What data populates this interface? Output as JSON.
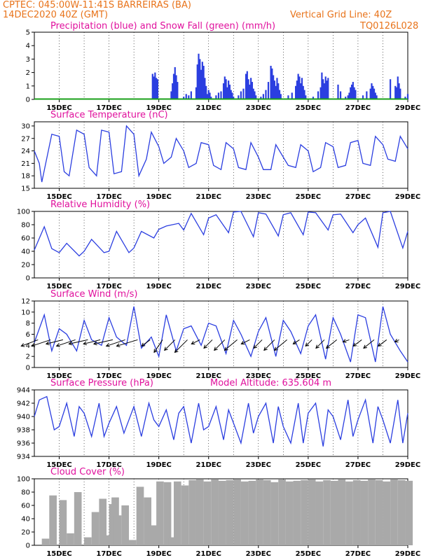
{
  "header": {
    "station": "CPTEC:  045:00W-11:41S  BARREIRAS (BA)",
    "run": "14DEC2020 40Z (GMT)",
    "grid_note": "Vertical Grid Line: 40Z",
    "code": "TQ0126L028"
  },
  "colors": {
    "header": "#e8731a",
    "title": "#e0119d",
    "line": "#2b3ee0",
    "snow": "#19a019",
    "cloud": "#a9a9a9"
  },
  "chart_data": [
    {
      "type": "bar",
      "title": "Precipitation (blue) and Snow Fall (green) (mm/h)",
      "ylim": [
        0,
        5
      ],
      "yticks": [
        0,
        1,
        2,
        3,
        4,
        5
      ],
      "x_range_days": [
        14,
        29
      ],
      "xticks": [
        "15DEC",
        "17DEC",
        "19DEC",
        "21DEC",
        "23DEC",
        "25DEC",
        "27DEC",
        "29DEC"
      ],
      "series": [
        {
          "name": "blue",
          "x": [
            18.75,
            18.8,
            18.85,
            18.9,
            18.95,
            19.5,
            19.55,
            19.6,
            19.65,
            19.7,
            19.75,
            20.0,
            20.1,
            20.2,
            20.3,
            20.5,
            20.55,
            20.6,
            20.65,
            20.7,
            20.75,
            20.8,
            20.85,
            20.9,
            20.95,
            21.0,
            21.05,
            21.1,
            21.3,
            21.4,
            21.5,
            21.6,
            21.65,
            21.7,
            21.75,
            21.8,
            21.85,
            21.9,
            21.95,
            22.0,
            22.2,
            22.3,
            22.4,
            22.5,
            22.55,
            22.6,
            22.65,
            22.7,
            22.75,
            22.8,
            22.85,
            22.9,
            23.1,
            23.2,
            23.3,
            23.4,
            23.5,
            23.55,
            23.6,
            23.65,
            23.7,
            23.75,
            23.8,
            23.85,
            23.9,
            24.2,
            24.35,
            24.5,
            24.55,
            24.6,
            24.65,
            24.7,
            24.75,
            24.8,
            24.85,
            24.9,
            25.2,
            25.4,
            25.5,
            25.55,
            25.6,
            25.65,
            25.7,
            25.75,
            25.8,
            26.2,
            26.3,
            26.5,
            26.6,
            26.65,
            26.7,
            26.75,
            26.8,
            26.85,
            26.9,
            27.2,
            27.35,
            27.5,
            27.55,
            27.6,
            27.65,
            27.7,
            27.75,
            28.3,
            28.5,
            28.55,
            28.6,
            28.65,
            28.7,
            28.9,
            29.0
          ],
          "values": [
            1.9,
            1.7,
            2.0,
            1.6,
            1.5,
            0.6,
            1.2,
            1.9,
            2.4,
            1.8,
            1.3,
            0.2,
            0.4,
            0.3,
            0.6,
            0.9,
            2.6,
            3.4,
            3.0,
            2.2,
            2.8,
            2.5,
            1.6,
            1.0,
            0.4,
            0.7,
            0.5,
            0.2,
            0.3,
            0.5,
            0.6,
            1.2,
            1.7,
            1.5,
            0.9,
            1.4,
            1.1,
            0.7,
            0.5,
            0.2,
            0.3,
            0.6,
            0.8,
            1.9,
            2.1,
            1.5,
            1.1,
            1.6,
            1.3,
            0.8,
            0.6,
            0.3,
            0.2,
            0.4,
            0.7,
            1.3,
            2.5,
            2.3,
            1.8,
            1.4,
            1.0,
            1.6,
            1.2,
            0.7,
            0.4,
            0.3,
            0.5,
            1.0,
            1.4,
            1.9,
            1.7,
            1.2,
            1.6,
            1.0,
            0.7,
            0.3,
            0.2,
            0.6,
            0.9,
            2.0,
            1.5,
            1.2,
            1.7,
            1.4,
            1.6,
            1.1,
            0.6,
            0.2,
            0.3,
            0.5,
            0.9,
            1.1,
            1.3,
            0.9,
            0.7,
            0.3,
            0.6,
            0.8,
            1.2,
            1.0,
            0.8,
            0.5,
            0.3,
            1.5,
            1.0,
            0.9,
            1.7,
            1.2,
            0.8,
            0.2,
            0.4
          ]
        },
        {
          "name": "green",
          "x": [
            14,
            29
          ],
          "values": [
            0,
            0
          ]
        }
      ]
    },
    {
      "type": "line",
      "title": "Surface Temperature (nC)",
      "ylim": [
        15,
        31
      ],
      "yticks": [
        15,
        18,
        21,
        24,
        27,
        30
      ],
      "xticks": [
        "15DEC",
        "17DEC",
        "19DEC",
        "21DEC",
        "23DEC",
        "25DEC",
        "27DEC",
        "29DEC"
      ],
      "series": [
        {
          "x": [
            14,
            14.2,
            14.3,
            14.7,
            15.0,
            15.2,
            15.4,
            15.7,
            16.0,
            16.2,
            16.5,
            16.7,
            17.0,
            17.2,
            17.5,
            17.7,
            18.0,
            18.2,
            18.5,
            18.7,
            19.0,
            19.2,
            19.5,
            19.7,
            20.0,
            20.2,
            20.5,
            20.7,
            21.0,
            21.2,
            21.5,
            21.7,
            22.0,
            22.2,
            22.5,
            22.7,
            23.0,
            23.2,
            23.5,
            23.7,
            24.0,
            24.2,
            24.5,
            24.7,
            25.0,
            25.2,
            25.5,
            25.7,
            26.0,
            26.2,
            26.5,
            26.7,
            27.0,
            27.2,
            27.5,
            27.7,
            28.0,
            28.2,
            28.5,
            28.7,
            29.0
          ],
          "values": [
            24,
            21,
            16.5,
            28,
            27.5,
            19,
            18,
            29,
            28,
            20,
            18,
            29,
            28.5,
            18.5,
            19,
            30,
            28,
            18,
            22,
            28.5,
            25,
            21,
            22.5,
            27,
            24,
            20,
            21,
            26,
            25.5,
            20.5,
            19.5,
            26,
            24.5,
            20,
            19.5,
            26,
            22.5,
            19.5,
            19.5,
            25.5,
            22.5,
            20.5,
            20,
            25.5,
            24,
            19,
            20,
            26,
            25,
            20,
            20.5,
            26,
            26.5,
            21,
            20.5,
            27.5,
            25.5,
            22,
            21.5,
            27.5,
            24.5
          ]
        }
      ]
    },
    {
      "type": "line",
      "title": "Relative Humidity (%)",
      "ylim": [
        0,
        100
      ],
      "yticks": [
        0,
        20,
        40,
        60,
        80,
        100
      ],
      "xticks": [
        "15DEC",
        "17DEC",
        "19DEC",
        "21DEC",
        "23DEC",
        "25DEC",
        "27DEC",
        "29DEC"
      ],
      "series": [
        {
          "x": [
            14,
            14.4,
            14.7,
            15.0,
            15.3,
            15.8,
            16.0,
            16.3,
            16.8,
            17.0,
            17.3,
            17.8,
            18.0,
            18.3,
            18.8,
            19.0,
            19.3,
            19.8,
            20.0,
            20.3,
            20.8,
            21.0,
            21.3,
            21.8,
            22.0,
            22.3,
            22.8,
            23.0,
            23.3,
            23.8,
            24.0,
            24.3,
            24.8,
            25.0,
            25.3,
            25.8,
            26.0,
            26.3,
            26.8,
            27.0,
            27.3,
            27.8,
            28.0,
            28.3,
            28.8,
            29.0
          ],
          "values": [
            42,
            77,
            44,
            38,
            52,
            33,
            40,
            58,
            38,
            40,
            70,
            38,
            45,
            70,
            60,
            73,
            78,
            82,
            72,
            97,
            65,
            90,
            95,
            68,
            99,
            100,
            62,
            98,
            96,
            63,
            95,
            98,
            65,
            99,
            98,
            72,
            95,
            96,
            68,
            80,
            90,
            46,
            98,
            100,
            45,
            70
          ]
        }
      ]
    },
    {
      "type": "line",
      "title": "Surface Wind (m/s)",
      "ylim": [
        0,
        12
      ],
      "yticks": [
        0,
        2,
        4,
        6,
        8,
        10,
        12
      ],
      "xticks": [
        "15DEC",
        "17DEC",
        "19DEC",
        "21DEC",
        "23DEC",
        "25DEC",
        "27DEC",
        "29DEC"
      ],
      "series": [
        {
          "x": [
            14,
            14.4,
            14.7,
            15.0,
            15.3,
            15.7,
            16.0,
            16.3,
            16.7,
            17.0,
            17.3,
            17.7,
            18.0,
            18.3,
            18.7,
            19.0,
            19.3,
            19.7,
            20.0,
            20.3,
            20.7,
            21.0,
            21.3,
            21.7,
            22.0,
            22.3,
            22.7,
            23.0,
            23.3,
            23.7,
            24.0,
            24.3,
            24.7,
            25.0,
            25.3,
            25.7,
            26.0,
            26.3,
            26.7,
            27.0,
            27.3,
            27.7,
            28.0,
            28.3,
            28.7,
            29.0
          ],
          "values": [
            4.5,
            9.5,
            3.0,
            7.0,
            6.0,
            3.0,
            8.5,
            5.0,
            4.0,
            9.0,
            5.5,
            4.0,
            11.0,
            3.5,
            5.5,
            2.0,
            9.5,
            3.0,
            7.0,
            7.5,
            4.0,
            8.0,
            7.5,
            2.5,
            8.5,
            6.0,
            2.0,
            6.5,
            9.0,
            2.0,
            8.5,
            6.5,
            2.5,
            7.5,
            9.5,
            1.5,
            9.0,
            6.0,
            1.0,
            9.5,
            9.0,
            1.0,
            11.0,
            6.0,
            3.0,
            1.0
          ]
        }
      ]
    },
    {
      "type": "line",
      "title": "Surface Pressure (hPa)",
      "subtitle": "Model Altitude: 635.604 m",
      "ylim": [
        934,
        944
      ],
      "yticks": [
        934,
        936,
        938,
        940,
        942,
        944
      ],
      "xticks": [
        "15DEC",
        "17DEC",
        "19DEC",
        "21DEC",
        "23DEC",
        "25DEC",
        "27DEC",
        "29DEC"
      ],
      "series": [
        {
          "x": [
            14,
            14.2,
            14.5,
            14.8,
            15.0,
            15.3,
            15.6,
            15.8,
            16.0,
            16.3,
            16.6,
            16.8,
            17.0,
            17.3,
            17.6,
            17.8,
            18.0,
            18.3,
            18.6,
            18.8,
            19.0,
            19.3,
            19.6,
            19.8,
            20.0,
            20.3,
            20.6,
            20.8,
            21.0,
            21.3,
            21.6,
            21.8,
            22.0,
            22.3,
            22.6,
            22.8,
            23.0,
            23.3,
            23.6,
            23.8,
            24.0,
            24.3,
            24.6,
            24.8,
            25.0,
            25.3,
            25.6,
            25.8,
            26.0,
            26.3,
            26.6,
            26.8,
            27.0,
            27.3,
            27.6,
            27.8,
            28.0,
            28.3,
            28.6,
            28.8,
            29.0
          ],
          "values": [
            940,
            942.5,
            943,
            938,
            938.5,
            942,
            937,
            941.5,
            940.5,
            937,
            942,
            937,
            939,
            941.5,
            937.5,
            939.5,
            941.5,
            937,
            942,
            939.5,
            938.5,
            941,
            936.5,
            940.5,
            941.5,
            936,
            942,
            938,
            938.5,
            941.5,
            936.5,
            941,
            939,
            936,
            942,
            937.5,
            940,
            942,
            936,
            941.5,
            938.5,
            936,
            942,
            936,
            940.5,
            942,
            935.5,
            941,
            940,
            936.5,
            942.5,
            937,
            939.5,
            942.5,
            936,
            941.5,
            939.5,
            936,
            942.5,
            936,
            940.5
          ]
        }
      ]
    },
    {
      "type": "bar",
      "title": "Cloud Cover (%)",
      "ylim": [
        0,
        100
      ],
      "yticks": [
        0,
        20,
        40,
        60,
        80,
        100
      ],
      "xticks": [
        "15DEC",
        "17DEC",
        "19DEC",
        "21DEC",
        "23DEC",
        "25DEC",
        "27DEC",
        "29DEC"
      ],
      "series": [
        {
          "name": "cloud",
          "x": [
            14.3,
            14.6,
            15.0,
            15.3,
            15.6,
            16.0,
            16.3,
            16.6,
            16.8,
            17.0,
            17.1,
            17.2,
            17.5,
            17.8,
            18.1,
            18.4,
            18.7,
            18.9,
            19.2,
            19.4,
            19.6,
            19.9,
            20.2,
            20.5,
            20.8,
            21.1,
            21.4,
            21.7,
            22.0,
            22.3,
            22.6,
            22.9,
            23.2,
            23.5,
            23.8,
            24.1,
            24.4,
            24.7,
            25.0,
            25.3,
            25.6,
            25.9,
            26.2,
            26.5,
            26.8,
            27.1,
            27.4,
            27.7,
            28.0,
            28.3,
            28.6,
            28.9
          ],
          "values": [
            10,
            75,
            68,
            18,
            80,
            12,
            50,
            70,
            15,
            62,
            72,
            45,
            60,
            8,
            88,
            72,
            30,
            96,
            95,
            12,
            96,
            90,
            98,
            99,
            96,
            99,
            97,
            98,
            99,
            96,
            97,
            99,
            98,
            95,
            99,
            96,
            97,
            98,
            99,
            96,
            98,
            97,
            99,
            96,
            98,
            97,
            99,
            98,
            96,
            99,
            98,
            97
          ]
        }
      ]
    }
  ],
  "wind_vectors": {
    "x": [
      14.15,
      14.65,
      15.15,
      15.65,
      16.15,
      16.65,
      17.15,
      17.65,
      18.15,
      18.65,
      19.15,
      19.65,
      20.15,
      20.65,
      21.15,
      21.65,
      22.15,
      22.65,
      23.15,
      23.65,
      24.15,
      24.65,
      25.15,
      25.65,
      26.15,
      26.65,
      27.15,
      27.65,
      28.15,
      28.65
    ],
    "u": [
      -8,
      -9,
      -8,
      -9,
      -9,
      -8,
      -9,
      -9,
      -10,
      -4,
      -4,
      -5,
      -6,
      -4,
      -4,
      -5,
      -6,
      -4,
      -4,
      -5,
      -6,
      -3,
      -3,
      -4,
      -5,
      -3,
      -4,
      -5,
      -4,
      -2
    ],
    "v": [
      -3,
      -3,
      -2,
      -3,
      -2,
      -2,
      -2,
      -3,
      -3,
      -3,
      -6,
      -5,
      -6,
      -2,
      -4,
      -5,
      -5,
      -2,
      -4,
      -5,
      -5,
      -2,
      -3,
      -4,
      -4,
      -1,
      -3,
      -4,
      -3,
      -1
    ]
  }
}
